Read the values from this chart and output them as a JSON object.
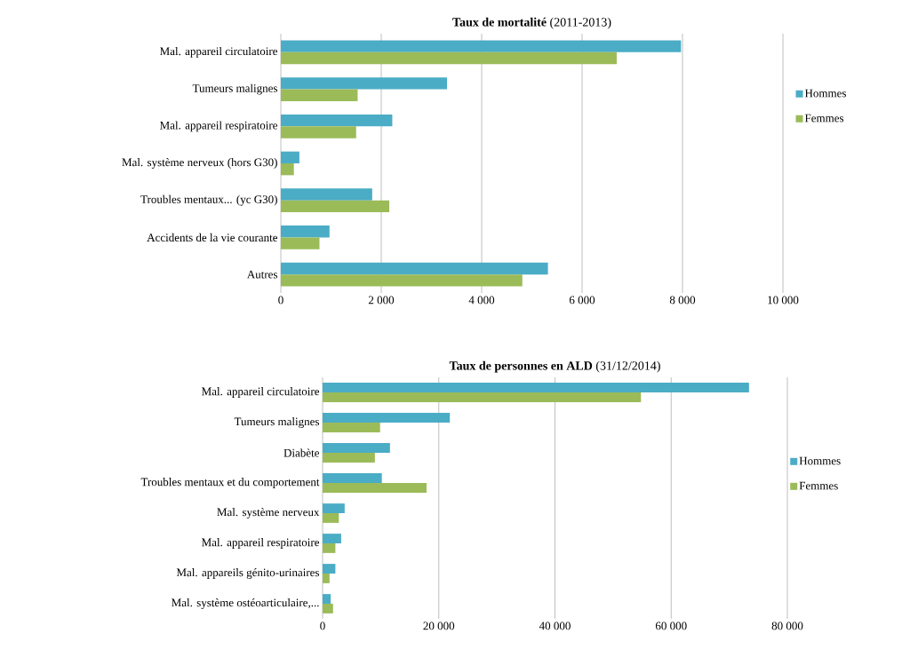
{
  "chart_data": [
    {
      "type": "bar",
      "orientation": "horizontal",
      "title": "**Taux de mortalité** (2011-2013)",
      "categories": [
        "Mal. appareil circulatoire",
        "Tumeurs malignes",
        "Mal. appareil respiratoire",
        "Mal. système nerveux (hors G30)",
        "Troubles mentaux... (yc G30)",
        "Accidents de la vie courante",
        "Autres"
      ],
      "series": [
        {
          "name": "Hommes",
          "color": "#4bacc6",
          "values": [
            7970,
            3310,
            2220,
            370,
            1820,
            970,
            5320
          ]
        },
        {
          "name": "Femmes",
          "color": "#9bbb59",
          "values": [
            6690,
            1530,
            1500,
            260,
            2160,
            770,
            4810
          ]
        }
      ],
      "xlim": [
        0,
        10000
      ],
      "xticks": [
        0,
        {
          "value": 2000,
          "label": "2 000"
        },
        {
          "value": 4000,
          "label": "4 000"
        },
        {
          "value": 6000,
          "label": "6 000"
        },
        {
          "value": 8000,
          "label": "8 000"
        },
        {
          "value": 10000,
          "label": "10 000"
        }
      ],
      "grid": "x",
      "legend": "right"
    },
    {
      "type": "bar",
      "orientation": "horizontal",
      "title": "**Taux de personnes en ALD** (31/12/2014)",
      "categories": [
        "Mal. appareil circulatoire",
        "Tumeurs malignes",
        "Diabète",
        "Troubles mentaux et du comportement",
        "Mal. système nerveux",
        "Mal. appareil respiratoire",
        "Mal. appareils génito-urinaires",
        "Mal. système ostéoarticulaire,..."
      ],
      "series": [
        {
          "name": "Hommes",
          "color": "#4bacc6",
          "values": [
            73400,
            21900,
            11600,
            10200,
            3800,
            3200,
            2200,
            1400
          ]
        },
        {
          "name": "Femmes",
          "color": "#9bbb59",
          "values": [
            54800,
            9900,
            9000,
            17900,
            2800,
            2200,
            1200,
            1800
          ]
        }
      ],
      "xlim": [
        0,
        80000
      ],
      "xticks": [
        0,
        {
          "value": 20000,
          "label": "20 000"
        },
        {
          "value": 40000,
          "label": "40 000"
        },
        {
          "value": 60000,
          "label": "60 000"
        },
        {
          "value": 80000,
          "label": "80 000"
        }
      ],
      "grid": "x",
      "legend": "right"
    }
  ]
}
